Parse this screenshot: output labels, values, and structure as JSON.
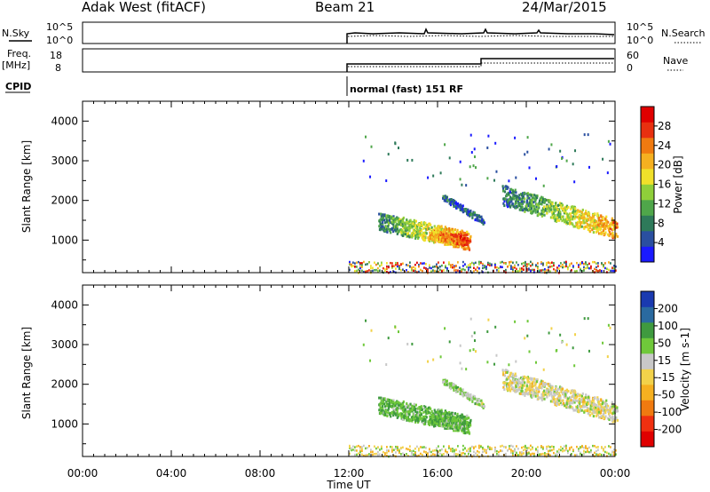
{
  "header": {
    "station": "Adak West (fitACF)",
    "beam": "Beam 21",
    "date": "24/Mar/2015"
  },
  "labels": {
    "nsky": "N.Sky",
    "freq": "Freq.",
    "mhz": "[MHz]",
    "cpid": "CPID",
    "nsearch": "N.Search",
    "nave": "Nave",
    "cpid_value": "normal (fast) 151 RF",
    "time_axis": "Time UT"
  },
  "colors": {
    "power_scale": [
      "#1a1aff",
      "#2a4fa0",
      "#2e7a5a",
      "#4fa64a",
      "#8fcf3a",
      "#f0e02a",
      "#f5b020",
      "#f07a10",
      "#e83010",
      "#e00000"
    ],
    "velocity_scale": [
      "#e00000",
      "#f03010",
      "#f07a10",
      "#f5b020",
      "#f2d24a",
      "#c8c8c8",
      "#6fc83a",
      "#3f9a3f",
      "#2a6aa0",
      "#1a3ab0"
    ]
  },
  "chart_data": [
    {
      "type": "line",
      "name": "noise-panel",
      "left_ylabel": "N.Sky",
      "right_ylabel": "N.Search",
      "left_ticks": [
        "10^5",
        "10^0"
      ],
      "right_ticks": [
        "10^5",
        "10^0"
      ],
      "data_start": "12:00"
    },
    {
      "type": "line",
      "name": "freq-nave-panel",
      "left_ylabel": "Freq. [MHz]",
      "right_ylabel": "Nave",
      "left_ticks": [
        18,
        8
      ],
      "right_ticks": [
        60,
        0
      ],
      "freq_step_time": "18:00"
    },
    {
      "type": "heatmap",
      "name": "power",
      "ylabel": "Slant Range [km]",
      "ylim": [
        180,
        4500
      ],
      "yticks": [
        1000,
        2000,
        3000,
        4000
      ],
      "x_ticks": [
        "00:00",
        "04:00",
        "08:00",
        "12:00",
        "16:00",
        "20:00",
        "00:00"
      ],
      "colorbar_label": "Power [dB]",
      "colorbar_ticks": [
        4,
        8,
        12,
        16,
        20,
        24,
        28
      ],
      "colorbar_range": [
        0,
        32
      ]
    },
    {
      "type": "heatmap",
      "name": "velocity",
      "ylabel": "Slant Range [km]",
      "ylim": [
        180,
        4500
      ],
      "yticks": [
        1000,
        2000,
        3000,
        4000
      ],
      "x_ticks": [
        "00:00",
        "04:00",
        "08:00",
        "12:00",
        "16:00",
        "20:00",
        "00:00"
      ],
      "xlabel": "Time UT",
      "colorbar_label": "Velocity [m s-1]",
      "colorbar_ticks": [
        200,
        100,
        50,
        15,
        -15,
        -50,
        -100,
        -200
      ]
    }
  ]
}
